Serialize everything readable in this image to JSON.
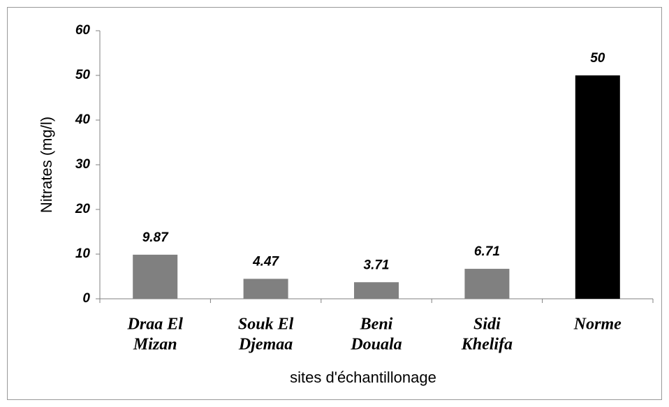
{
  "chart_data": {
    "type": "bar",
    "categories": [
      [
        "Draa El",
        "Mizan"
      ],
      [
        "Souk El",
        "Djemaa"
      ],
      [
        "Beni",
        "Douala"
      ],
      [
        "Sidi",
        "Khelifa"
      ],
      [
        "Norme"
      ]
    ],
    "values": [
      9.87,
      4.47,
      3.71,
      6.71,
      50
    ],
    "colors": [
      "#808080",
      "#808080",
      "#808080",
      "#808080",
      "#000000"
    ],
    "ylim": [
      0,
      60
    ],
    "yticks": [
      0,
      10,
      20,
      30,
      40,
      50,
      60
    ],
    "y_label": "Nitrates (mg/l)",
    "x_label": "sites d'échantillonage",
    "grid": false
  }
}
